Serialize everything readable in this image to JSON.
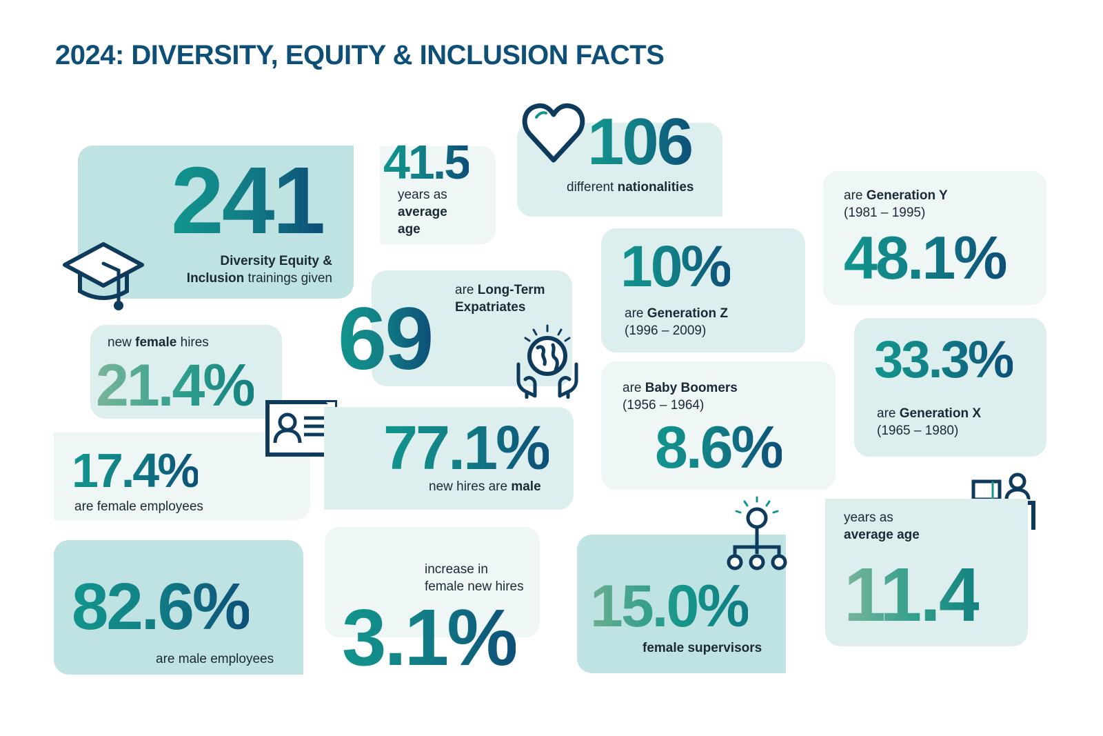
{
  "title": "2024: DIVERSITY, EQUITY & INCLUSION FACTS",
  "trainings": {
    "value": "241",
    "label_bold_1": "Diversity Equity &",
    "label_bold_2": "Inclusion",
    "label_rest": " trainings given"
  },
  "average_age_1": {
    "value": "41.5",
    "line1": "years as",
    "line2": "average",
    "line3": "age"
  },
  "nationalities": {
    "value": "106",
    "label_pre": "different ",
    "label_bold": "nationalities"
  },
  "gen_y": {
    "pre": "are ",
    "bold": "Generation Y",
    "years": "(1981 – 1995)",
    "value": "48.1%"
  },
  "gen_z": {
    "value": "10%",
    "pre": "are ",
    "bold": "Generation Z",
    "years": "(1996 – 2009)"
  },
  "expatriates": {
    "value": "69",
    "pre": "are ",
    "bold1": "Long-Term",
    "bold2": "Expatriates"
  },
  "female_hires": {
    "pre": "new ",
    "bold": "female",
    "post": " hires",
    "value": "21.4%"
  },
  "gen_x": {
    "value": "33.3%",
    "pre": "are ",
    "bold": "Generation X",
    "years": "(1965 – 1980)"
  },
  "boomers": {
    "pre": "are ",
    "bold": "Baby Boomers",
    "years": "(1956 – 1964)",
    "value": "8.6%"
  },
  "female_employees": {
    "value": "17.4%",
    "label": "are female employees"
  },
  "male_hires": {
    "value": "77.1%",
    "pre": "new hires are ",
    "bold": "male"
  },
  "male_employees": {
    "value": "82.6%",
    "label": "are male employees"
  },
  "increase": {
    "line1": "increase in",
    "line2": "female new hires",
    "value": "3.1%"
  },
  "supervisors": {
    "value": "15.0%",
    "label": "female supervisors"
  },
  "average_age_2": {
    "line1": "years as",
    "line2": "average age",
    "value": "11.4"
  },
  "icons": [
    "graduation-cap-icon",
    "heart-icon",
    "globe-hands-icon",
    "id-card-icon",
    "org-chart-icon",
    "desk-worker-icon"
  ],
  "colors": {
    "title": "#0e4f78",
    "teal": "#12958d",
    "navy": "#0d4f78",
    "green": "#7ab59a",
    "card_dark": "#bfe3e2",
    "card_mid": "#dcefee",
    "card_light": "#eef7f6"
  }
}
